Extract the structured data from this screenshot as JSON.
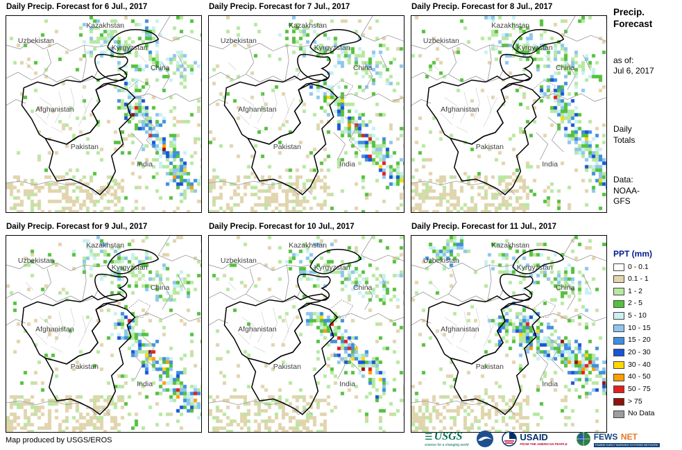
{
  "panels": [
    {
      "title": "Daily Precip. Forecast for 6 Jul., 2017"
    },
    {
      "title": "Daily Precip. Forecast for 7 Jul., 2017"
    },
    {
      "title": "Daily Precip. Forecast for 8 Jul., 2017"
    },
    {
      "title": "Daily Precip. Forecast for 9 Jul., 2017"
    },
    {
      "title": "Daily Precip. Forecast for 10 Jul., 2017"
    },
    {
      "title": "Daily Precip. Forecast for 11 Jul., 2017"
    }
  ],
  "map_labels": {
    "kazakhstan": "Kazakhstan",
    "uzbekistan": "Uzbekistan",
    "kyrgyzstan": "Kyrgyzstan",
    "china": "China",
    "afghanistan": "Afghanistan",
    "pakistan": "Pakistan",
    "india": "India"
  },
  "sidebar": {
    "title_line1": "Precip.",
    "title_line2": "Forecast",
    "as_of_label": "as of:",
    "as_of_date": "Jul 6, 2017",
    "totals_line1": "Daily",
    "totals_line2": "Totals",
    "data_label": "Data:",
    "data_line1": "NOAA-",
    "data_line2": "GFS"
  },
  "legend": {
    "title": "PPT (mm)",
    "entries": [
      {
        "label": "0 - 0.1",
        "color": "#ffffff"
      },
      {
        "label": "0.1 - 1",
        "color": "#e0d5ae"
      },
      {
        "label": "1 - 2",
        "color": "#b7e8a1"
      },
      {
        "label": "2 - 5",
        "color": "#55c13e"
      },
      {
        "label": "5 - 10",
        "color": "#c9f0f2"
      },
      {
        "label": "10 - 15",
        "color": "#8ec6ec"
      },
      {
        "label": "15 - 20",
        "color": "#3f8fdc"
      },
      {
        "label": "20 - 30",
        "color": "#1a54d8"
      },
      {
        "label": "30 - 40",
        "color": "#ffd800"
      },
      {
        "label": "40 - 50",
        "color": "#ff9e00"
      },
      {
        "label": "50 - 75",
        "color": "#e2211c"
      },
      {
        "label": "> 75",
        "color": "#8f130b"
      },
      {
        "label": "No Data",
        "color": "#9d9d9d"
      }
    ]
  },
  "footer": {
    "credit": "Map produced by USGS/EROS"
  },
  "logos": {
    "usgs": {
      "name": "USGS",
      "tagline": "science for a changing world"
    },
    "noaa": {
      "name": "NOAA"
    },
    "usaid": {
      "name": "USAID",
      "tagline": "FROM THE AMERICAN PEOPLE"
    },
    "fewsnet": {
      "name_left": "FEWS",
      "name_right": "NET",
      "tagline": "FAMINE EARLY WARNING SYSTEMS NETWORK"
    }
  }
}
